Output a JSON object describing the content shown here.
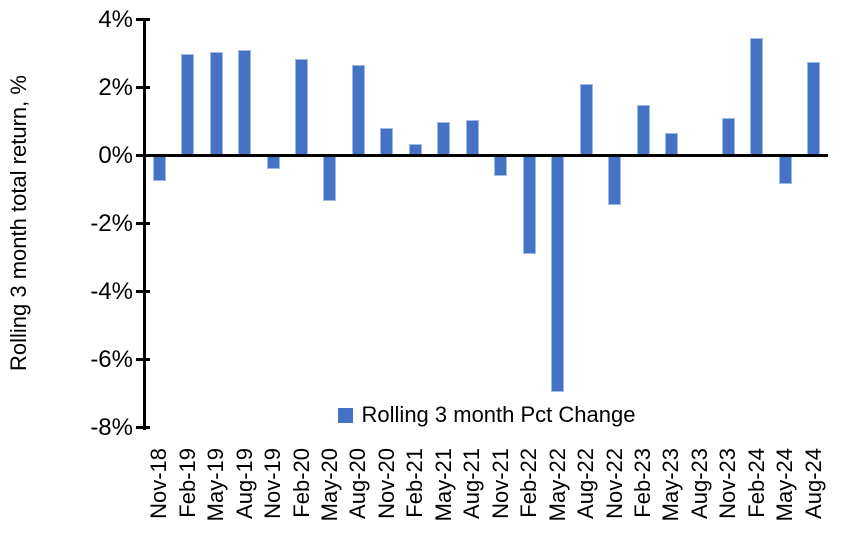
{
  "chart_data": {
    "type": "bar",
    "title": "",
    "xlabel": "",
    "ylabel": "Rolling 3 month total return, %",
    "categories": [
      "Nov-18",
      "Feb-19",
      "May-19",
      "Aug-19",
      "Nov-19",
      "Feb-20",
      "May-20",
      "Aug-20",
      "Nov-20",
      "Feb-21",
      "May-21",
      "Aug-21",
      "Nov-21",
      "Feb-22",
      "May-22",
      "Aug-22",
      "Nov-22",
      "Feb-23",
      "May-23",
      "Aug-23",
      "Nov-23",
      "Feb-24",
      "May-24",
      "Aug-24"
    ],
    "series": [
      {
        "name": "Rolling 3 month Pct Change",
        "values": [
          -0.75,
          3.0,
          3.05,
          3.1,
          -0.4,
          2.85,
          -1.35,
          2.65,
          0.8,
          0.35,
          1.0,
          1.05,
          -0.6,
          -2.9,
          -6.95,
          2.1,
          -1.45,
          1.5,
          0.65,
          0.0,
          1.1,
          3.45,
          -0.85,
          2.75
        ]
      }
    ],
    "ylim": [
      -8,
      4
    ],
    "ytick_step": 2,
    "ytick_labels": [
      "4%",
      "2%",
      "0%",
      "-2%",
      "-4%",
      "-6%",
      "-8%"
    ],
    "grid": false,
    "legend": {
      "label": "Rolling 3 month Pct Change",
      "position": "bottom-center"
    },
    "colors": {
      "bar_fill": "#4472C4",
      "bar_border": "#9FB9E6",
      "axis": "#000000",
      "text": "#000000"
    }
  }
}
